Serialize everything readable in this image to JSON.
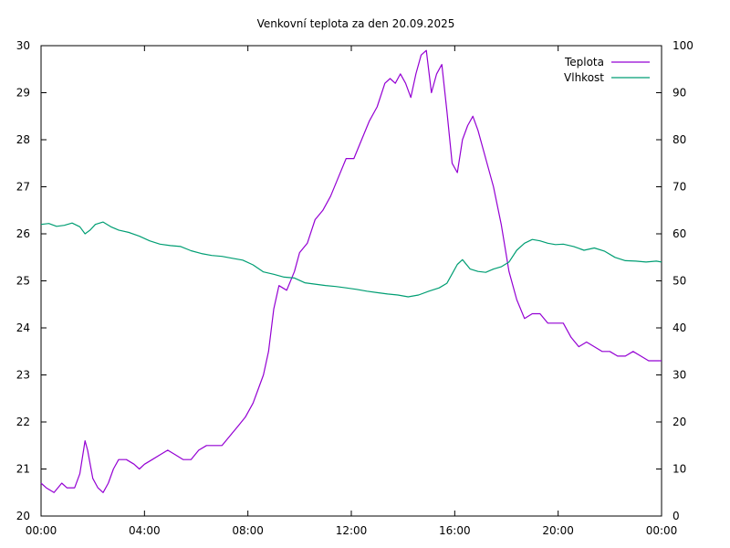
{
  "chart_data": {
    "type": "line",
    "title": "Venkovní teplota za den 20.09.2025",
    "xlabel": "",
    "ylabel": "",
    "y2label": "",
    "x_ticks": [
      "00:00",
      "04:00",
      "08:00",
      "12:00",
      "16:00",
      "20:00",
      "00:00"
    ],
    "xlim_hours": [
      0,
      24
    ],
    "ylim": [
      20,
      30
    ],
    "y_ticks": [
      "20",
      "21",
      "22",
      "23",
      "24",
      "25",
      "26",
      "27",
      "28",
      "29",
      "30"
    ],
    "y2lim": [
      0,
      100
    ],
    "y2_ticks": [
      "0",
      "10",
      "20",
      "30",
      "40",
      "50",
      "60",
      "70",
      "80",
      "90",
      "100"
    ],
    "grid": false,
    "legend_position": "top-right",
    "series": [
      {
        "name": "Teplota",
        "axis": "left",
        "color": "#9400d3",
        "x_hours": [
          0,
          0.2,
          0.5,
          0.8,
          1.0,
          1.3,
          1.5,
          1.7,
          1.8,
          2.0,
          2.2,
          2.4,
          2.6,
          2.8,
          3.0,
          3.3,
          3.6,
          3.8,
          4.0,
          4.3,
          4.6,
          4.9,
          5.2,
          5.5,
          5.8,
          6.1,
          6.4,
          6.7,
          7.0,
          7.3,
          7.6,
          7.9,
          8.2,
          8.4,
          8.6,
          8.8,
          9.0,
          9.2,
          9.5,
          9.8,
          10.0,
          10.3,
          10.6,
          10.9,
          11.2,
          11.5,
          11.8,
          12.1,
          12.4,
          12.7,
          13.0,
          13.3,
          13.5,
          13.7,
          13.9,
          14.1,
          14.3,
          14.5,
          14.7,
          14.9,
          15.1,
          15.3,
          15.5,
          15.7,
          15.9,
          16.1,
          16.3,
          16.5,
          16.7,
          16.9,
          17.2,
          17.5,
          17.8,
          18.1,
          18.4,
          18.7,
          19.0,
          19.3,
          19.6,
          19.9,
          20.2,
          20.5,
          20.8,
          21.1,
          21.4,
          21.7,
          22.0,
          22.3,
          22.6,
          22.9,
          23.2,
          23.5,
          23.8,
          24.0
        ],
        "values": [
          20.7,
          20.6,
          20.5,
          20.7,
          20.6,
          20.6,
          20.9,
          21.6,
          21.4,
          20.8,
          20.6,
          20.5,
          20.7,
          21.0,
          21.2,
          21.2,
          21.1,
          21.0,
          21.1,
          21.2,
          21.3,
          21.4,
          21.3,
          21.2,
          21.2,
          21.4,
          21.5,
          21.5,
          21.5,
          21.7,
          21.9,
          22.1,
          22.4,
          22.7,
          23.0,
          23.5,
          24.4,
          24.9,
          24.8,
          25.2,
          25.6,
          25.8,
          26.3,
          26.5,
          26.8,
          27.2,
          27.6,
          27.6,
          28.0,
          28.4,
          28.7,
          29.2,
          29.3,
          29.2,
          29.4,
          29.2,
          28.9,
          29.4,
          29.8,
          29.9,
          29.0,
          29.4,
          29.6,
          28.6,
          27.5,
          27.3,
          28.0,
          28.3,
          28.5,
          28.2,
          27.6,
          27.0,
          26.2,
          25.2,
          24.6,
          24.2,
          24.3,
          24.3,
          24.1,
          24.1,
          24.1,
          23.8,
          23.6,
          23.7,
          23.6,
          23.5,
          23.5,
          23.4,
          23.4,
          23.5,
          23.4,
          23.3,
          23.3,
          23.3
        ]
      },
      {
        "name": "Vlhkost",
        "axis": "right",
        "color": "#009e73",
        "x_hours": [
          0,
          0.3,
          0.6,
          0.9,
          1.2,
          1.5,
          1.7,
          1.9,
          2.1,
          2.4,
          2.7,
          3.0,
          3.4,
          3.8,
          4.2,
          4.6,
          5.0,
          5.4,
          5.8,
          6.2,
          6.6,
          7.0,
          7.4,
          7.8,
          8.2,
          8.6,
          9.0,
          9.4,
          9.8,
          10.2,
          10.6,
          11.0,
          11.4,
          11.8,
          12.2,
          12.6,
          13.0,
          13.4,
          13.8,
          14.2,
          14.6,
          15.0,
          15.4,
          15.7,
          15.9,
          16.1,
          16.3,
          16.6,
          16.9,
          17.2,
          17.5,
          17.8,
          18.1,
          18.4,
          18.7,
          19.0,
          19.3,
          19.6,
          19.9,
          20.2,
          20.6,
          21.0,
          21.4,
          21.8,
          22.2,
          22.6,
          23.0,
          23.4,
          23.8,
          24.0
        ],
        "values": [
          62,
          62.2,
          61.6,
          61.8,
          62.3,
          61.5,
          60,
          60.8,
          62,
          62.5,
          61.5,
          60.8,
          60.3,
          59.5,
          58.5,
          57.8,
          57.5,
          57.3,
          56.4,
          55.8,
          55.4,
          55.2,
          54.8,
          54.4,
          53.4,
          51.9,
          51.4,
          50.8,
          50.6,
          49.6,
          49.3,
          49.0,
          48.8,
          48.5,
          48.2,
          47.8,
          47.5,
          47.2,
          47.0,
          46.6,
          47.0,
          47.8,
          48.5,
          49.5,
          51.5,
          53.5,
          54.5,
          52.5,
          52.0,
          51.8,
          52.5,
          53.0,
          54.0,
          56.5,
          58.0,
          58.8,
          58.5,
          58.0,
          57.7,
          57.8,
          57.3,
          56.5,
          57.0,
          56.3,
          55.0,
          54.3,
          54.2,
          54.0,
          54.2,
          54.0
        ]
      }
    ]
  }
}
